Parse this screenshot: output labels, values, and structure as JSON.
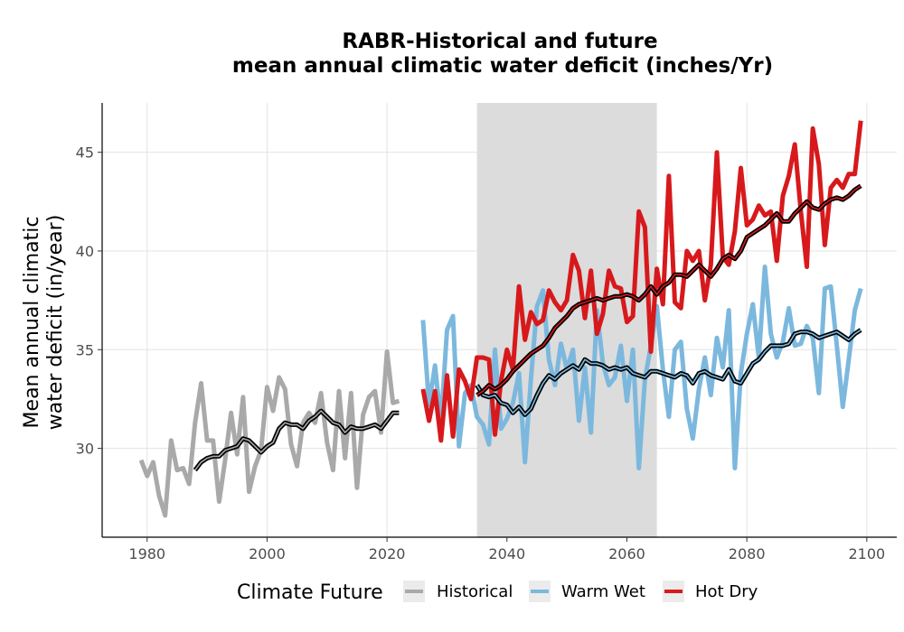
{
  "chart_data": {
    "type": "line",
    "title_line1": "RABR-Historical and future",
    "title_line2": "mean annual climatic water deficit (inches/Yr)",
    "xlabel": "",
    "ylabel_line1": "Mean annual climatic",
    "ylabel_line2": "water deficit (in/year)",
    "xlim": [
      1972.5,
      2105
    ],
    "ylim": [
      25.5,
      47.5
    ],
    "x_ticks": [
      1980,
      2000,
      2020,
      2040,
      2060,
      2080,
      2100
    ],
    "y_ticks": [
      30,
      35,
      40,
      45
    ],
    "x_tick_labels": [
      "1980",
      "2000",
      "2020",
      "2040",
      "2060",
      "2080",
      "2100"
    ],
    "y_tick_labels": [
      "30",
      "35",
      "40",
      "45"
    ],
    "grid": true,
    "shaded_period": [
      2035,
      2065
    ],
    "legend": {
      "title": "Climate Future",
      "position": "bottom",
      "entries": [
        "Historical",
        "Warm Wet",
        "Hot Dry"
      ]
    },
    "colors": {
      "Historical": "#a9a9a9",
      "Warm Wet": "#7cb8de",
      "Hot Dry": "#d7191c",
      "rolling_mean": "#000000",
      "shade": "#dcdcdc",
      "grid": "#e3e3e3"
    },
    "series": [
      {
        "name": "Historical",
        "x": [
          1979,
          1980,
          1981,
          1982,
          1983,
          1984,
          1985,
          1986,
          1987,
          1988,
          1989,
          1990,
          1991,
          1992,
          1993,
          1994,
          1995,
          1996,
          1997,
          1998,
          1999,
          2000,
          2001,
          2002,
          2003,
          2004,
          2005,
          2006,
          2007,
          2008,
          2009,
          2010,
          2011,
          2012,
          2013,
          2014,
          2015,
          2016,
          2017,
          2018,
          2019,
          2020,
          2021,
          2022
        ],
        "y": [
          29.4,
          28.6,
          29.3,
          27.6,
          26.6,
          30.4,
          28.9,
          29.0,
          28.2,
          31.3,
          33.3,
          30.4,
          30.4,
          27.3,
          29.4,
          31.8,
          29.7,
          32.6,
          27.8,
          29.1,
          29.9,
          33.1,
          31.9,
          33.6,
          33.0,
          30.2,
          29.1,
          31.3,
          31.8,
          31.3,
          32.8,
          30.3,
          28.9,
          32.9,
          29.5,
          32.8,
          28.0,
          31.7,
          32.6,
          32.9,
          30.8,
          34.9,
          32.3,
          32.4
        ]
      },
      {
        "name": "Historical rolling mean",
        "x": [
          1988,
          1989,
          1990,
          1991,
          1992,
          1993,
          1994,
          1995,
          1996,
          1997,
          1998,
          1999,
          2000,
          2001,
          2002,
          2003,
          2004,
          2005,
          2006,
          2007,
          2008,
          2009,
          2010,
          2011,
          2012,
          2013,
          2014,
          2015,
          2016,
          2017,
          2018,
          2019,
          2020,
          2021,
          2022
        ],
        "y": [
          28.9,
          29.3,
          29.5,
          29.6,
          29.6,
          29.9,
          30.0,
          30.1,
          30.5,
          30.4,
          30.1,
          29.8,
          30.1,
          30.3,
          31.0,
          31.3,
          31.2,
          31.2,
          31.0,
          31.4,
          31.6,
          31.9,
          31.6,
          31.3,
          31.2,
          30.8,
          31.1,
          31.0,
          31.0,
          31.1,
          31.2,
          31.0,
          31.4,
          31.8,
          31.8
        ]
      },
      {
        "name": "Warm Wet",
        "x": [
          2026,
          2027,
          2028,
          2029,
          2030,
          2031,
          2032,
          2033,
          2034,
          2035,
          2036,
          2037,
          2038,
          2039,
          2040,
          2041,
          2042,
          2043,
          2044,
          2045,
          2046,
          2047,
          2048,
          2049,
          2050,
          2051,
          2052,
          2053,
          2054,
          2055,
          2056,
          2057,
          2058,
          2059,
          2060,
          2061,
          2062,
          2063,
          2064,
          2065,
          2066,
          2067,
          2068,
          2069,
          2070,
          2071,
          2072,
          2073,
          2074,
          2075,
          2076,
          2077,
          2078,
          2079,
          2080,
          2081,
          2082,
          2083,
          2084,
          2085,
          2086,
          2087,
          2088,
          2089,
          2090,
          2091,
          2092,
          2093,
          2094,
          2095,
          2096,
          2097,
          2098,
          2099
        ],
        "y": [
          36.5,
          32.2,
          34.2,
          31.3,
          36.0,
          36.7,
          30.1,
          32.8,
          33.2,
          31.6,
          31.2,
          30.2,
          35.0,
          31.0,
          31.5,
          32.3,
          33.8,
          29.3,
          33.5,
          37.2,
          38.0,
          34.5,
          33.2,
          35.3,
          34.0,
          35.0,
          31.4,
          34.1,
          30.8,
          37.0,
          34.3,
          33.2,
          33.6,
          35.2,
          32.4,
          35.0,
          29.0,
          33.5,
          35.2,
          37.2,
          34.0,
          31.6,
          35.0,
          35.4,
          32.0,
          30.5,
          33.0,
          34.6,
          32.7,
          35.6,
          34.1,
          37.0,
          29.0,
          33.8,
          35.8,
          37.3,
          34.6,
          39.2,
          35.8,
          34.6,
          35.4,
          37.1,
          35.2,
          35.3,
          36.2,
          35.6,
          32.8,
          38.1,
          38.2,
          35.2,
          32.1,
          34.5,
          37.0,
          38.1
        ]
      },
      {
        "name": "Warm Wet rolling mean",
        "x": [
          2035,
          2036,
          2037,
          2038,
          2039,
          2040,
          2041,
          2042,
          2043,
          2044,
          2045,
          2046,
          2047,
          2048,
          2049,
          2050,
          2051,
          2052,
          2053,
          2054,
          2055,
          2056,
          2057,
          2058,
          2059,
          2060,
          2061,
          2062,
          2063,
          2064,
          2065,
          2066,
          2067,
          2068,
          2069,
          2070,
          2071,
          2072,
          2073,
          2074,
          2075,
          2076,
          2077,
          2078,
          2079,
          2080,
          2081,
          2082,
          2083,
          2084,
          2085,
          2086,
          2087,
          2088,
          2089,
          2090,
          2091,
          2092,
          2093,
          2094,
          2095,
          2096,
          2097,
          2098,
          2099
        ],
        "y": [
          33.2,
          32.7,
          32.6,
          32.7,
          32.3,
          32.2,
          31.8,
          32.1,
          31.7,
          32.0,
          32.7,
          33.3,
          33.7,
          33.5,
          33.8,
          34.0,
          34.2,
          34.0,
          34.5,
          34.3,
          34.3,
          34.2,
          34.0,
          34.1,
          34.0,
          34.1,
          33.8,
          33.7,
          33.6,
          33.9,
          33.9,
          33.8,
          33.7,
          33.6,
          33.8,
          33.7,
          33.3,
          33.8,
          33.9,
          33.7,
          33.6,
          33.5,
          34.0,
          33.4,
          33.3,
          33.8,
          34.3,
          34.5,
          34.9,
          35.2,
          35.2,
          35.2,
          35.3,
          35.8,
          35.9,
          35.9,
          35.8,
          35.6,
          35.7,
          35.8,
          35.9,
          35.7,
          35.5,
          35.8,
          36.0
        ]
      },
      {
        "name": "Hot Dry",
        "x": [
          2026,
          2027,
          2028,
          2029,
          2030,
          2031,
          2032,
          2033,
          2034,
          2035,
          2036,
          2037,
          2038,
          2039,
          2040,
          2041,
          2042,
          2043,
          2044,
          2045,
          2046,
          2047,
          2048,
          2049,
          2050,
          2051,
          2052,
          2053,
          2054,
          2055,
          2056,
          2057,
          2058,
          2059,
          2060,
          2061,
          2062,
          2063,
          2064,
          2065,
          2066,
          2067,
          2068,
          2069,
          2070,
          2071,
          2072,
          2073,
          2074,
          2075,
          2076,
          2077,
          2078,
          2079,
          2080,
          2081,
          2082,
          2083,
          2084,
          2085,
          2086,
          2087,
          2088,
          2089,
          2090,
          2091,
          2092,
          2093,
          2094,
          2095,
          2096,
          2097,
          2098,
          2099
        ],
        "y": [
          33.0,
          31.4,
          32.9,
          30.4,
          33.7,
          30.6,
          34.0,
          33.4,
          32.5,
          34.6,
          34.6,
          34.5,
          30.7,
          33.4,
          35.0,
          34.0,
          38.2,
          35.5,
          36.9,
          36.3,
          36.5,
          38.0,
          37.4,
          37.0,
          37.5,
          39.8,
          39.0,
          36.6,
          39.0,
          35.8,
          36.8,
          39.0,
          38.2,
          38.1,
          36.4,
          36.7,
          42.0,
          41.2,
          34.9,
          39.1,
          37.3,
          43.8,
          37.4,
          37.1,
          40.0,
          39.5,
          40.0,
          37.5,
          39.3,
          45.0,
          39.7,
          39.3,
          41.0,
          44.2,
          41.3,
          41.6,
          42.3,
          41.8,
          42.0,
          39.5,
          42.8,
          43.8,
          45.4,
          42.0,
          39.2,
          46.2,
          44.4,
          40.3,
          43.2,
          43.6,
          43.2,
          43.9,
          43.9,
          46.6
        ]
      },
      {
        "name": "Hot Dry rolling mean",
        "x": [
          2035,
          2036,
          2037,
          2038,
          2039,
          2040,
          2041,
          2042,
          2043,
          2044,
          2045,
          2046,
          2047,
          2048,
          2049,
          2050,
          2051,
          2052,
          2053,
          2054,
          2055,
          2056,
          2057,
          2058,
          2059,
          2060,
          2061,
          2062,
          2063,
          2064,
          2065,
          2066,
          2067,
          2068,
          2069,
          2070,
          2071,
          2072,
          2073,
          2074,
          2075,
          2076,
          2077,
          2078,
          2079,
          2080,
          2081,
          2082,
          2083,
          2084,
          2085,
          2086,
          2087,
          2088,
          2089,
          2090,
          2091,
          2092,
          2093,
          2094,
          2095,
          2096,
          2097,
          2098,
          2099
        ],
        "y": [
          32.7,
          32.9,
          33.2,
          33.0,
          33.2,
          33.5,
          33.9,
          34.2,
          34.5,
          34.8,
          35.0,
          35.2,
          35.6,
          36.1,
          36.4,
          36.7,
          37.1,
          37.3,
          37.4,
          37.5,
          37.6,
          37.5,
          37.6,
          37.7,
          37.7,
          37.8,
          37.7,
          37.5,
          37.8,
          38.2,
          37.8,
          38.2,
          38.4,
          38.8,
          38.8,
          38.7,
          39.0,
          39.3,
          39.0,
          38.7,
          39.1,
          39.6,
          39.8,
          39.6,
          40.0,
          40.7,
          40.9,
          41.1,
          41.3,
          41.6,
          41.9,
          41.5,
          41.5,
          41.9,
          42.2,
          42.5,
          42.2,
          42.1,
          42.4,
          42.6,
          42.7,
          42.6,
          42.8,
          43.1,
          43.3
        ]
      }
    ]
  }
}
